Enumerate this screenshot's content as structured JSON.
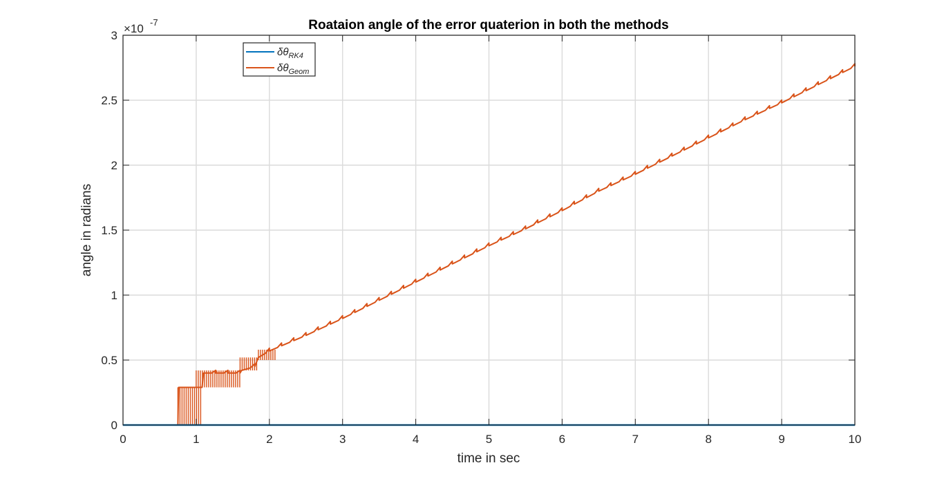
{
  "chart_data": {
    "type": "line",
    "title": "Roataion angle of the error quaterion in both the methods",
    "xlabel": "time in sec",
    "ylabel": "angle in radians",
    "y_exponent_label": "×10",
    "y_exponent_power": "-7",
    "xlim": [
      0,
      10
    ],
    "ylim": [
      0,
      3
    ],
    "y_scale_factor": 1e-07,
    "xticks": [
      0,
      1,
      2,
      3,
      4,
      5,
      6,
      7,
      8,
      9,
      10
    ],
    "xtick_labels": [
      "0",
      "1",
      "2",
      "3",
      "4",
      "5",
      "6",
      "7",
      "8",
      "9",
      "10"
    ],
    "yticks": [
      0,
      0.5,
      1,
      1.5,
      2,
      2.5,
      3
    ],
    "ytick_labels": [
      "0",
      "0.5",
      "1",
      "1.5",
      "2",
      "2.5",
      "3"
    ],
    "grid": true,
    "legend_position": "top-left",
    "series": [
      {
        "name": "δθ",
        "name_sub": "RK4",
        "color": "#0072BD",
        "x": [
          0,
          10
        ],
        "y": [
          0,
          0
        ]
      },
      {
        "name": "δθ",
        "name_sub": "Geom",
        "color": "#D95319",
        "x": [
          0,
          0.75,
          0.76,
          1.0,
          1.08,
          1.1,
          1.6,
          1.62,
          1.8,
          1.85,
          2.0,
          2.5,
          3.0,
          3.5,
          4.0,
          4.5,
          5.0,
          5.5,
          6.0,
          6.5,
          7.0,
          7.5,
          8.0,
          8.5,
          9.0,
          9.5,
          10.0
        ],
        "y": [
          0,
          0,
          0.29,
          0.29,
          0.29,
          0.4,
          0.4,
          0.42,
          0.45,
          0.52,
          0.57,
          0.69,
          0.82,
          0.96,
          1.1,
          1.24,
          1.38,
          1.51,
          1.65,
          1.8,
          1.93,
          2.07,
          2.21,
          2.35,
          2.48,
          2.62,
          2.76
        ]
      }
    ],
    "noise_bands": [
      {
        "x0": 0.75,
        "x1": 1.08,
        "y0": 0.0,
        "y1": 0.29
      },
      {
        "x0": 1.0,
        "x1": 1.6,
        "y0": 0.29,
        "y1": 0.42
      },
      {
        "x0": 1.6,
        "x1": 1.85,
        "y0": 0.42,
        "y1": 0.52
      },
      {
        "x0": 1.85,
        "x1": 2.1,
        "y0": 0.5,
        "y1": 0.58
      }
    ]
  }
}
